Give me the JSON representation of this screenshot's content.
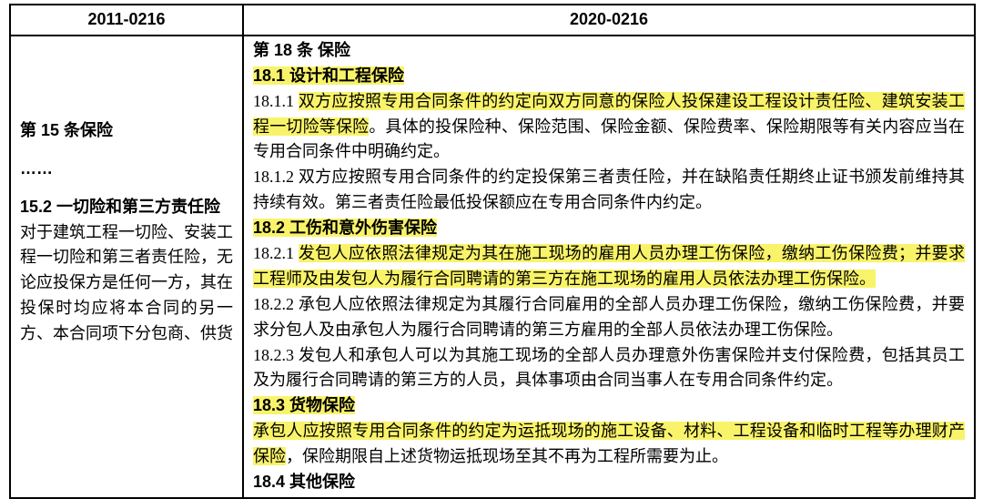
{
  "colors": {
    "highlight_bg": "#f9f36a",
    "text": "#000000",
    "border": "#000000",
    "background": "#ffffff"
  },
  "table": {
    "headers": {
      "left": "2011-0216",
      "right": "2020-0216"
    },
    "left_cell": {
      "title": "第 15 条保险",
      "ellipsis": "……",
      "section_header": "15.2 一切险和第三方责任险",
      "body": "对于建筑工程一切险、安装工程一切险和第三者责任险，无论应投保方是任何一方，其在投保时均应将本合同的另一方、本合同项下分包商、供货"
    },
    "right_cell": {
      "article_title": "第 18 条  保险",
      "s18_1_header": "18.1  设计和工程保险",
      "s18_1_1_num": "18.1.1 ",
      "s18_1_1_hl": "双方应按照专用合同条件的约定向双方同意的保险人投保建设工程设计责任险、建筑安装工程一切险等保险",
      "s18_1_1_rest": "。具体的投保险种、保险范围、保险金额、保险费率、保险期限等有关内容应当在专用合同条件中明确约定。",
      "s18_1_2": "18.1.2 双方应按照专用合同条件的约定投保第三者责任险，并在缺陷责任期终止证书颁发前维持其持续有效。第三者责任险最低投保额应在专用合同条件内约定。",
      "s18_2_header": "18.2  工伤和意外伤害保险",
      "s18_2_1_num": "18.2.1 ",
      "s18_2_1_hl": "发包人应依照法律规定为其在施工现场的雇用人员办理工伤保险，缴纳工伤保险费；并要求工程师及由发包人为履行合同聘请的第三方在施工现场的雇用人员依法办理工伤保险。",
      "s18_2_2": "18.2.2 承包人应依照法律规定为其履行合同雇用的全部人员办理工伤保险，缴纳工伤保险费，并要求分包人及由承包人为履行合同聘请的第三方雇用的全部人员依法办理工伤保险。",
      "s18_2_3": "18.2.3 发包人和承包人可以为其施工现场的全部人员办理意外伤害保险并支付保险费，包括其员工及为履行合同聘请的第三方的人员，具体事项由合同当事人在专用合同条件约定。",
      "s18_3_header": "18.3  货物保险",
      "s18_3_hl": "承包人应按照专用合同条件的约定为运抵现场的施工设备、材料、工程设备和临时工程等办理财产保险",
      "s18_3_rest": "，保险期限自上述货物运抵现场至其不再为工程所需要为止。",
      "s18_4_header": "18.4  其他保险"
    }
  }
}
